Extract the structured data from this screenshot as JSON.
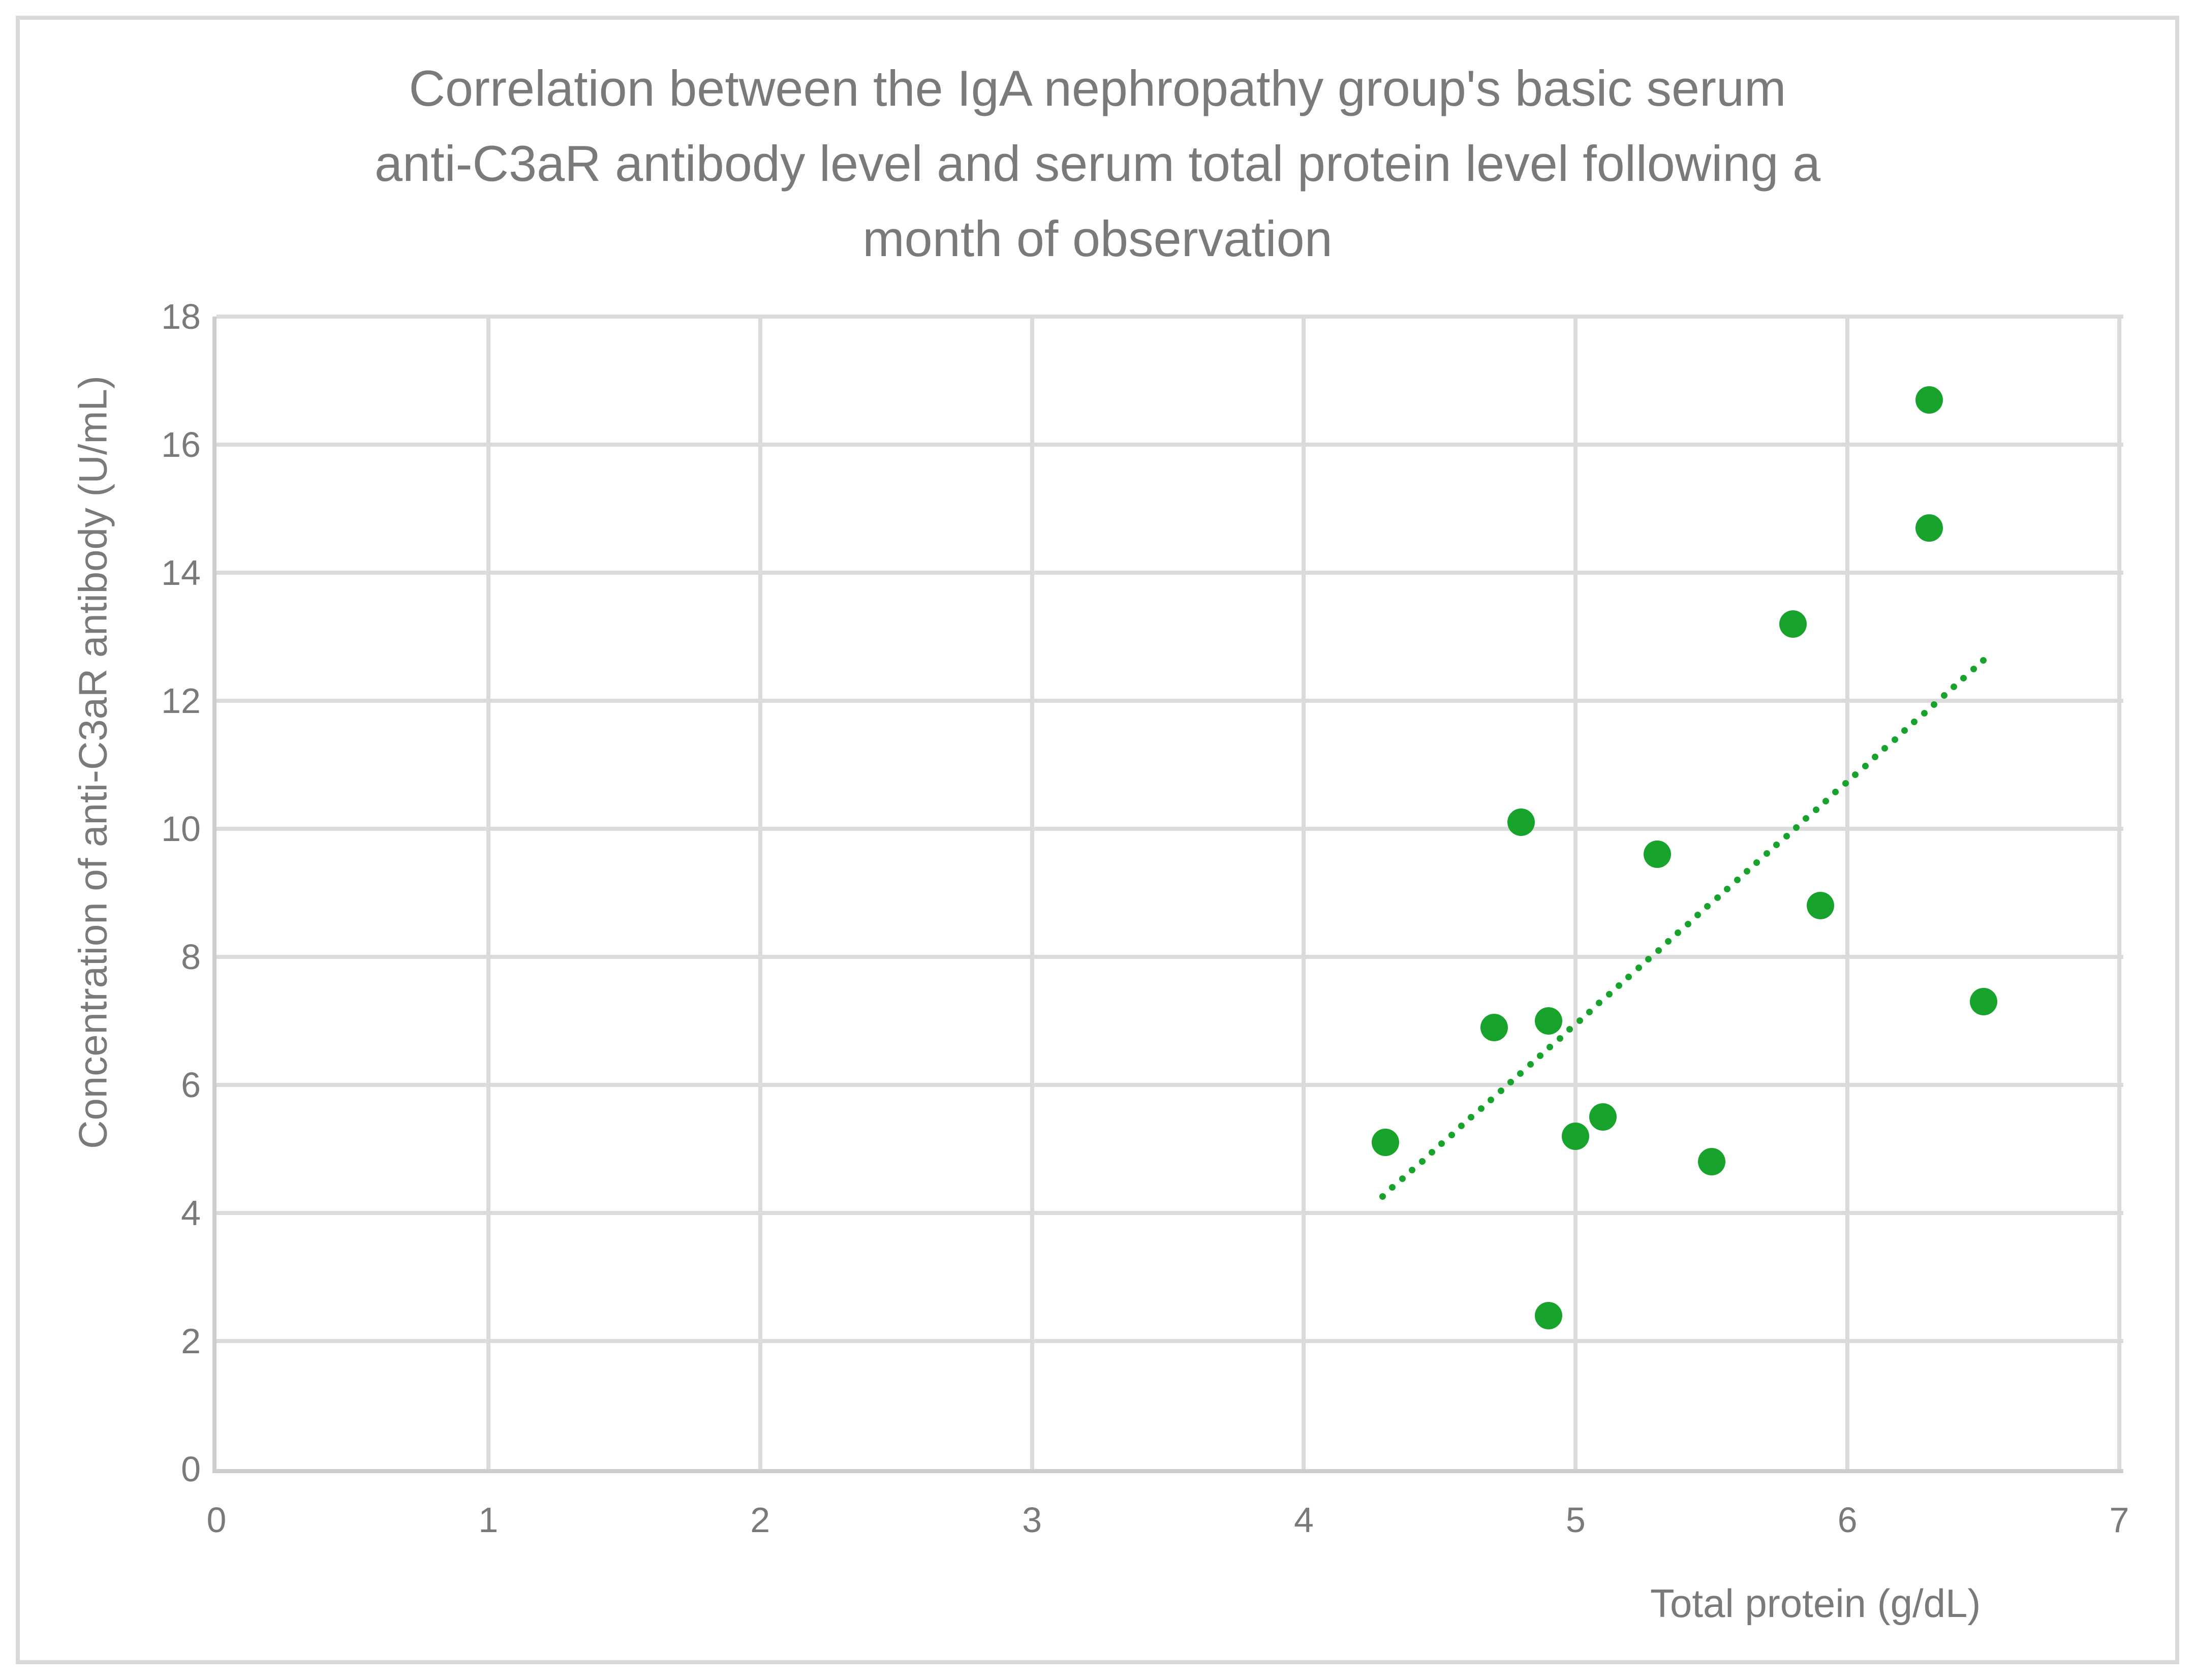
{
  "window": {
    "background": "#FFFFFF",
    "border_color": "#D9D9D9"
  },
  "chart_data": {
    "type": "scatter",
    "title": "Correlation between the IgA nephropathy group's basic serum anti-C3aR antibody level and serum total protein level following a month of observation",
    "title_lines": [
      "Correlation between the IgA nephropathy group's basic serum",
      "anti-C3aR antibody level and serum total protein level following a",
      "month of observation"
    ],
    "xlabel": "Total protein (g/dL)",
    "ylabel": "Concentration of anti-C3aR antibody (U/mL)",
    "xlim": [
      0,
      7
    ],
    "ylim": [
      0,
      18
    ],
    "x_ticks": [
      0,
      1,
      2,
      3,
      4,
      5,
      6,
      7
    ],
    "y_ticks": [
      0,
      2,
      4,
      6,
      8,
      10,
      12,
      14,
      16,
      18
    ],
    "grid": true,
    "legend": false,
    "points": [
      {
        "x": 4.3,
        "y": 5.1
      },
      {
        "x": 4.7,
        "y": 6.9
      },
      {
        "x": 4.8,
        "y": 10.1
      },
      {
        "x": 4.9,
        "y": 7.0
      },
      {
        "x": 4.9,
        "y": 2.4
      },
      {
        "x": 5.0,
        "y": 5.2
      },
      {
        "x": 5.1,
        "y": 5.5
      },
      {
        "x": 5.3,
        "y": 9.6
      },
      {
        "x": 5.5,
        "y": 4.8
      },
      {
        "x": 5.8,
        "y": 13.2
      },
      {
        "x": 5.9,
        "y": 8.8
      },
      {
        "x": 6.3,
        "y": 16.7
      },
      {
        "x": 6.3,
        "y": 14.7
      },
      {
        "x": 6.5,
        "y": 7.3
      }
    ],
    "trendline": {
      "style": "dotted",
      "start": {
        "x": 4.29,
        "y": 4.26
      },
      "end": {
        "x": 6.5,
        "y": 12.63
      }
    },
    "colors": {
      "marker": "#17A32C",
      "trendline": "#17A32C",
      "gridline": "#DBDBDB",
      "axis_line": "#CDCDCD",
      "text": "#7A7A7A"
    }
  }
}
